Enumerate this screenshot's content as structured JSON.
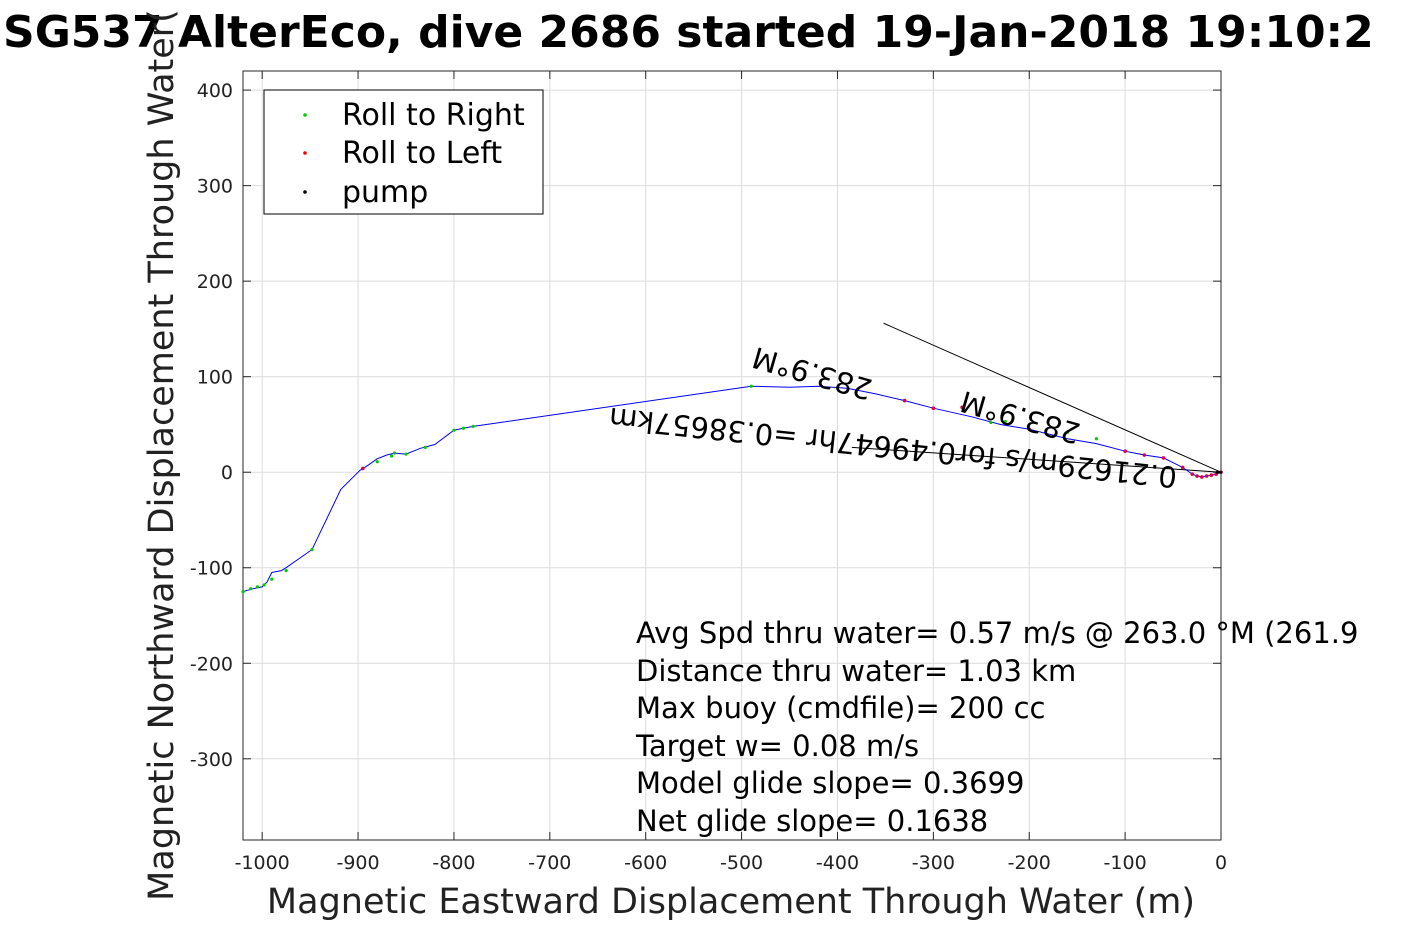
{
  "chart_data": {
    "type": "scatter",
    "title": "SG537 AlterEco, dive 2686 started 19-Jan-2018 19:10:2",
    "xlabel": "Magnetic Eastward Displacement Through Water (m)",
    "ylabel": "Magnetic Northward Displacement Through Water(",
    "xlim": [
      -1020,
      0
    ],
    "ylim": [
      -385,
      420
    ],
    "xticks": [
      -1000,
      -900,
      -800,
      -700,
      -600,
      -500,
      -400,
      -300,
      -200,
      -100,
      0
    ],
    "xtick_labels": [
      "-1000",
      "-900",
      "-800",
      "-700",
      "-600",
      "-500",
      "-400",
      "-300",
      "-200",
      "-100",
      "0"
    ],
    "yticks": [
      -300,
      -200,
      -100,
      0,
      100,
      200,
      300,
      400
    ],
    "ytick_labels": [
      "-300",
      "-200",
      "-100",
      "0",
      "100",
      "200",
      "300",
      "400"
    ],
    "grid": true,
    "legend": {
      "placement": "top-left",
      "entries": [
        {
          "label": "Roll to Right",
          "color": "#00cc00"
        },
        {
          "label": "Roll to Left",
          "color": "#ff0000"
        },
        {
          "label": "pump",
          "color": "#000000"
        }
      ]
    },
    "track": {
      "color": "#0000ff",
      "x": [
        0,
        -5,
        -10,
        -15,
        -20,
        -25,
        -30,
        -40,
        -50,
        -60,
        -80,
        -100,
        -130,
        -160,
        -180,
        -200,
        -230,
        -260,
        -300,
        -330,
        -360,
        -390,
        -420,
        -450,
        -490,
        -780,
        -790,
        -800,
        -820,
        -835,
        -850,
        -862,
        -870,
        -880,
        -893,
        -898,
        -918,
        -948,
        -975,
        -980,
        -990,
        -995,
        -1000,
        -1010,
        -1020
      ],
      "y": [
        0,
        -2,
        -3,
        -4,
        -5,
        -4,
        -2,
        5,
        10,
        15,
        18,
        22,
        30,
        35,
        40,
        45,
        50,
        58,
        67,
        75,
        82,
        88,
        90,
        89,
        90,
        48,
        46,
        44,
        29,
        25,
        19,
        20,
        18,
        14,
        5,
        2,
        -18,
        -81,
        -100,
        -103,
        -105,
        -115,
        -120,
        -122,
        -125
      ]
    },
    "roll_right": {
      "color": "#00cc00",
      "x": [
        -490,
        -780,
        -790,
        -800,
        -830,
        -850,
        -862,
        -865,
        -880,
        -990,
        -998,
        -1005,
        -1012,
        -1020,
        -975,
        -948,
        -240,
        -225,
        -160,
        -130
      ],
      "y": [
        90,
        48,
        46,
        44,
        26,
        19,
        20,
        17,
        11,
        -112,
        -118,
        -120,
        -122,
        -125,
        -103,
        -81,
        52,
        53,
        42,
        35
      ]
    },
    "roll_left": {
      "color": "#dd0044",
      "x": [
        0,
        -5,
        -10,
        -15,
        -20,
        -25,
        -30,
        -40,
        -60,
        -80,
        -100,
        -200,
        -270,
        -300,
        -330,
        -895
      ],
      "y": [
        0,
        -2,
        -3,
        -4,
        -5,
        -4,
        -2,
        5,
        15,
        18,
        22,
        45,
        68,
        67,
        75,
        4
      ]
    },
    "pump": {
      "color": "#000000",
      "x": [
        0,
        -2,
        -4
      ],
      "y": [
        0,
        0,
        0
      ]
    },
    "reference_lines": [
      {
        "x": [
          0,
          -352
        ],
        "y": [
          0,
          156
        ]
      },
      {
        "x": [
          0,
          -385
        ],
        "y": [
          0,
          26
        ]
      }
    ],
    "annotations": [
      {
        "text": "0.21629m/s for0.49647hr =0.38657km",
        "x": -45,
        "y": 5,
        "rotation_deg": 186,
        "flipped": true
      },
      {
        "text": "283.9°M",
        "x": -362,
        "y": 96,
        "rotation_deg": 196,
        "flipped": true
      },
      {
        "text": "283.9°M",
        "x": -145,
        "y": 50,
        "rotation_deg": 196,
        "flipped": true
      }
    ],
    "stats": [
      "Avg Spd thru water=  0.57 m/s @ 263.0 °M (261.9",
      "Distance thru water=  1.03 km",
      "Max buoy (cmdfile)= 200 cc",
      "Target w= 0.08 m/s",
      "Model glide slope= 0.3699",
      "Net glide slope= 0.1638"
    ]
  }
}
